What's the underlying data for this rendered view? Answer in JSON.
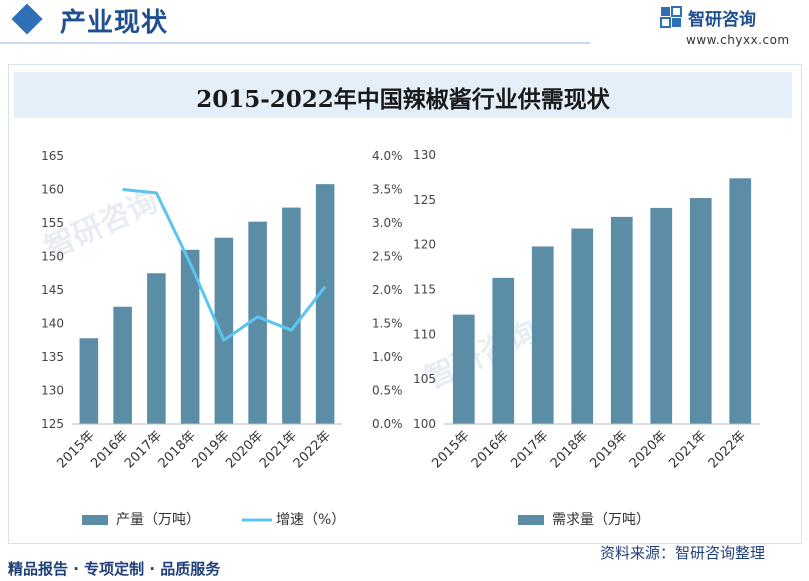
{
  "header": {
    "title": "产业现状",
    "logo_name": "智研咨询",
    "logo_url": "www.chyxx.com",
    "accent": "#2f6fb5"
  },
  "chart_title": "2015-2022年中国辣椒酱行业供需现状",
  "footer": {
    "left": "精品报告 · 专项定制 · 品质服务",
    "right": "资料来源：智研咨询整理"
  },
  "chart_data": [
    {
      "type": "bar",
      "categories": [
        "2015年",
        "2016年",
        "2017年",
        "2018年",
        "2019年",
        "2020年",
        "2021年",
        "2022年"
      ],
      "series": [
        {
          "name": "产量（万吨）",
          "type": "bar",
          "color": "#5b8ea6",
          "values": [
            137.8,
            142.5,
            147.5,
            151.0,
            152.8,
            155.2,
            157.3,
            160.8
          ]
        },
        {
          "name": "增速（%）",
          "type": "line",
          "color": "#5bc4ef",
          "axis": "right",
          "values": [
            null,
            3.5,
            3.45,
            2.4,
            1.25,
            1.6,
            1.4,
            2.05
          ]
        }
      ],
      "ylim": [
        125,
        165
      ],
      "yticks": [
        125,
        130,
        135,
        140,
        145,
        150,
        155,
        160,
        165
      ],
      "y2lim": [
        0,
        4
      ],
      "y2ticks": [
        "0.0%",
        "0.5%",
        "1.0%",
        "1.5%",
        "2.0%",
        "2.5%",
        "3.0%",
        "3.5%",
        "4.0%"
      ],
      "legend_position": "bottom"
    },
    {
      "type": "bar",
      "categories": [
        "2015年",
        "2016年",
        "2017年",
        "2018年",
        "2019年",
        "2020年",
        "2021年",
        "2022年"
      ],
      "series": [
        {
          "name": "需求量（万吨）",
          "type": "bar",
          "color": "#5b8ea6",
          "values": [
            112.2,
            116.3,
            119.8,
            121.8,
            123.1,
            124.1,
            125.2,
            127.4
          ]
        }
      ],
      "ylim": [
        100,
        130
      ],
      "yticks": [
        100,
        105,
        110,
        115,
        120,
        125,
        130
      ],
      "legend_position": "bottom"
    }
  ]
}
